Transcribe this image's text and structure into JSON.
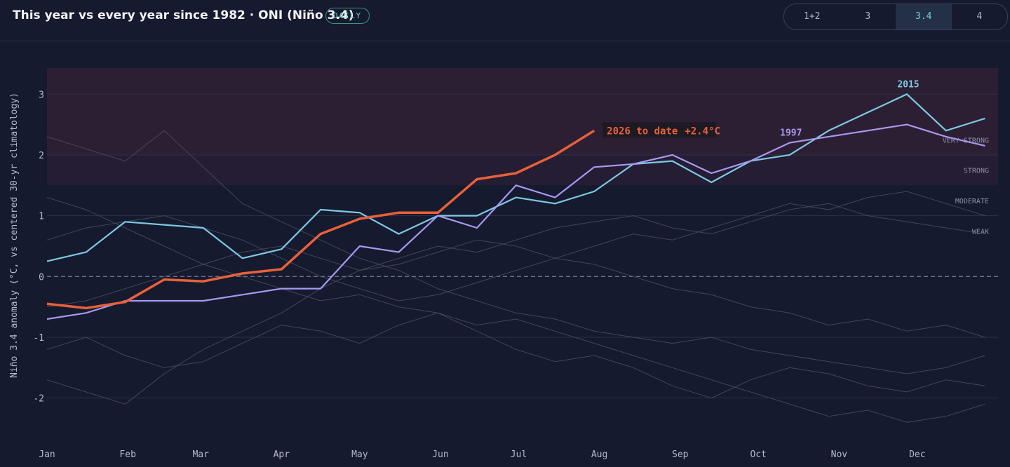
{
  "header": {
    "title": "This year vs every year since 1982 · ONI (Niño 3.4)",
    "badge": "DAILY",
    "tabs": [
      "1+2",
      "3",
      "3.4",
      "4"
    ],
    "active_tab": 2
  },
  "chart_data": {
    "type": "line",
    "y_label": "Niño 3.4 anomaly (°C, vs centered 30-yr climatology)",
    "xlim": [
      0,
      365
    ],
    "xticks": [
      {
        "value": 0,
        "label": "Jan"
      },
      {
        "value": 31,
        "label": "Feb"
      },
      {
        "value": 59,
        "label": "Mar"
      },
      {
        "value": 90,
        "label": "Apr"
      },
      {
        "value": 120,
        "label": "May"
      },
      {
        "value": 151,
        "label": "Jun"
      },
      {
        "value": 181,
        "label": "Jul"
      },
      {
        "value": 212,
        "label": "Aug"
      },
      {
        "value": 243,
        "label": "Sep"
      },
      {
        "value": 273,
        "label": "Oct"
      },
      {
        "value": 304,
        "label": "Nov"
      },
      {
        "value": 334,
        "label": "Dec"
      }
    ],
    "ylim": [
      -2.65,
      3.43
    ],
    "yticks": [
      -2,
      -1,
      0,
      1,
      2,
      3
    ],
    "grid": true,
    "bands": [
      {
        "label": "VERY STRONG",
        "from": 2,
        "to": 3.43,
        "color": "#2c1f33"
      },
      {
        "label": "STRONG",
        "from": 1.5,
        "to": 2,
        "color": "#241d33"
      },
      {
        "label": "MODERATE",
        "from": 1,
        "to": 1.5,
        "color": null
      },
      {
        "label": "WEAK",
        "from": 0.5,
        "to": 1,
        "color": null
      }
    ],
    "x": [
      0,
      15,
      30,
      45,
      60,
      75,
      90,
      105,
      120,
      135,
      150,
      165,
      180,
      195,
      210,
      225,
      240,
      255,
      270,
      285,
      300,
      315,
      330,
      345,
      360
    ],
    "series": [
      {
        "color": "#4a4f5e",
        "values": [
          2.3,
          2.1,
          1.9,
          2.4,
          1.8,
          1.2,
          0.9,
          0.6,
          0.3,
          0.1,
          -0.2,
          -0.4,
          -0.6,
          -0.7,
          -0.9,
          -1.0,
          -1.1,
          -1.0,
          -1.2,
          -1.3,
          -1.4,
          -1.5,
          -1.6,
          -1.5,
          -1.3
        ]
      },
      {
        "color": "#4a4f5e",
        "values": [
          -1.7,
          -1.9,
          -2.1,
          -1.6,
          -1.2,
          -0.9,
          -0.6,
          -0.2,
          0.1,
          0.3,
          0.5,
          0.4,
          0.6,
          0.8,
          0.9,
          1.0,
          0.8,
          0.7,
          0.9,
          1.1,
          1.2,
          1.0,
          0.9,
          0.8,
          0.7
        ]
      },
      {
        "color": "#4a4f5e",
        "values": [
          1.3,
          1.1,
          0.8,
          0.5,
          0.2,
          0.0,
          -0.2,
          -0.4,
          -0.3,
          -0.5,
          -0.6,
          -0.8,
          -0.7,
          -0.9,
          -1.1,
          -1.3,
          -1.5,
          -1.7,
          -1.9,
          -2.1,
          -2.3,
          -2.2,
          -2.4,
          -2.3,
          -2.1
        ]
      },
      {
        "color": "#4a4f5e",
        "values": [
          -0.5,
          -0.4,
          -0.2,
          0.0,
          0.2,
          0.4,
          0.5,
          0.3,
          0.1,
          0.2,
          0.4,
          0.6,
          0.5,
          0.3,
          0.2,
          0.0,
          -0.2,
          -0.3,
          -0.5,
          -0.6,
          -0.8,
          -0.7,
          -0.9,
          -0.8,
          -1.0
        ]
      },
      {
        "color": "#4a4f5e",
        "values": [
          0.6,
          0.8,
          0.9,
          1.0,
          0.8,
          0.6,
          0.3,
          0.0,
          -0.2,
          -0.4,
          -0.3,
          -0.1,
          0.1,
          0.3,
          0.5,
          0.7,
          0.6,
          0.8,
          1.0,
          1.2,
          1.1,
          1.3,
          1.4,
          1.2,
          1.0
        ]
      },
      {
        "color": "#4a4f5e",
        "values": [
          -1.2,
          -1.0,
          -1.3,
          -1.5,
          -1.4,
          -1.1,
          -0.8,
          -0.9,
          -1.1,
          -0.8,
          -0.6,
          -0.9,
          -1.2,
          -1.4,
          -1.3,
          -1.5,
          -1.8,
          -2.0,
          -1.7,
          -1.5,
          -1.6,
          -1.8,
          -1.9,
          -1.7,
          -1.8
        ]
      },
      {
        "name": "2015",
        "color": "#7ec8e3",
        "width": 2.2,
        "values": [
          0.25,
          0.4,
          0.9,
          0.85,
          0.8,
          0.3,
          0.45,
          1.1,
          1.05,
          0.7,
          1.0,
          1.0,
          1.3,
          1.2,
          1.4,
          1.85,
          1.9,
          1.55,
          1.9,
          2.0,
          2.4,
          2.7,
          3.0,
          2.4,
          2.6
        ]
      },
      {
        "name": "1997",
        "color": "#a898f0",
        "width": 2.2,
        "values": [
          -0.7,
          -0.6,
          -0.4,
          -0.4,
          -0.4,
          -0.3,
          -0.2,
          -0.2,
          0.5,
          0.4,
          1.0,
          0.8,
          1.5,
          1.3,
          1.8,
          1.85,
          2.0,
          1.7,
          1.9,
          2.2,
          2.3,
          2.4,
          2.5,
          2.3,
          2.15
        ]
      },
      {
        "name": "2026 to date",
        "end_label": "+2.4°C",
        "color": "#e8603a",
        "width": 3.5,
        "values": [
          -0.45,
          -0.52,
          -0.42,
          -0.05,
          -0.08,
          0.05,
          0.12,
          0.7,
          0.95,
          1.05,
          1.05,
          1.6,
          1.7,
          2.0,
          2.4,
          null,
          null,
          null,
          null,
          null,
          null,
          null,
          null,
          null,
          null
        ]
      }
    ]
  }
}
